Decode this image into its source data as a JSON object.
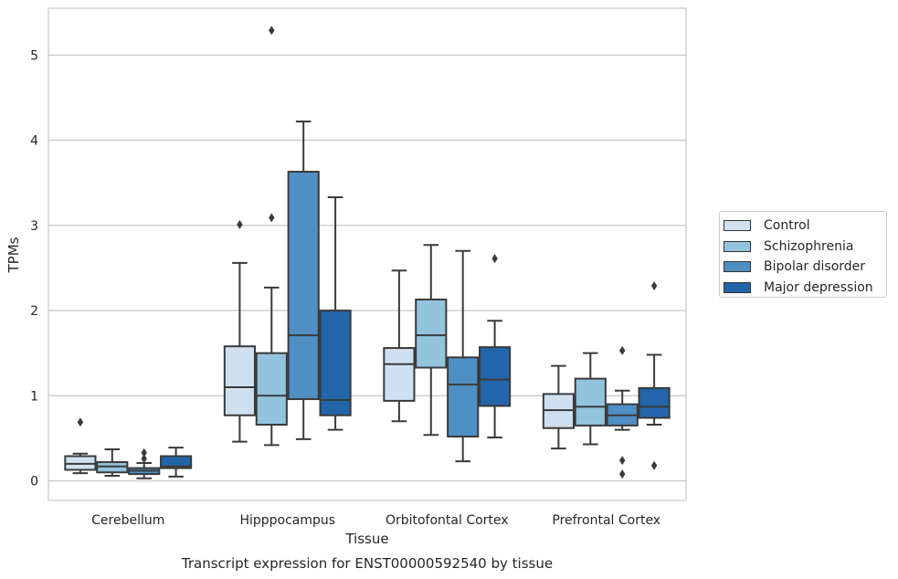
{
  "chart_data": {
    "type": "box",
    "title": "Transcript expression for ENST00000592540 by tissue",
    "xlabel": "Tissue",
    "ylabel": "TPMs",
    "ylim": [
      -0.23,
      5.55
    ],
    "yticks": [
      0,
      1,
      2,
      3,
      4,
      5
    ],
    "grid": "horizontal",
    "legend_position": "right",
    "categories": [
      "Cerebellum",
      "Hipppocampus",
      "Orbitofontal Cortex",
      "Prefrontal Cortex"
    ],
    "series": [
      {
        "name": "Control",
        "color": "#cfe0f1",
        "boxes": [
          {
            "whisker_low": 0.09,
            "q1": 0.13,
            "median": 0.2,
            "q3": 0.29,
            "whisker_high": 0.32,
            "outliers": [
              0.69
            ]
          },
          {
            "whisker_low": 0.46,
            "q1": 0.77,
            "median": 1.1,
            "q3": 1.58,
            "whisker_high": 2.56,
            "outliers": [
              3.01
            ]
          },
          {
            "whisker_low": 0.7,
            "q1": 0.94,
            "median": 1.37,
            "q3": 1.56,
            "whisker_high": 2.47,
            "outliers": []
          },
          {
            "whisker_low": 0.38,
            "q1": 0.62,
            "median": 0.83,
            "q3": 1.02,
            "whisker_high": 1.35,
            "outliers": []
          }
        ]
      },
      {
        "name": "Schizophrenia",
        "color": "#93c4de",
        "boxes": [
          {
            "whisker_low": 0.06,
            "q1": 0.1,
            "median": 0.17,
            "q3": 0.22,
            "whisker_high": 0.37,
            "outliers": []
          },
          {
            "whisker_low": 0.42,
            "q1": 0.66,
            "median": 1.0,
            "q3": 1.5,
            "whisker_high": 2.27,
            "outliers": [
              3.09,
              5.29
            ]
          },
          {
            "whisker_low": 0.54,
            "q1": 1.33,
            "median": 1.71,
            "q3": 2.13,
            "whisker_high": 2.77,
            "outliers": []
          },
          {
            "whisker_low": 0.43,
            "q1": 0.65,
            "median": 0.87,
            "q3": 1.2,
            "whisker_high": 1.5,
            "outliers": []
          }
        ]
      },
      {
        "name": "Bipolar disorder",
        "color": "#4f8fc4",
        "boxes": [
          {
            "whisker_low": 0.03,
            "q1": 0.08,
            "median": 0.12,
            "q3": 0.15,
            "whisker_high": 0.21,
            "outliers": [
              0.26,
              0.33
            ]
          },
          {
            "whisker_low": 0.49,
            "q1": 0.96,
            "median": 1.71,
            "q3": 3.63,
            "whisker_high": 4.22,
            "outliers": []
          },
          {
            "whisker_low": 0.23,
            "q1": 0.52,
            "median": 1.13,
            "q3": 1.45,
            "whisker_high": 2.7,
            "outliers": []
          },
          {
            "whisker_low": 0.6,
            "q1": 0.65,
            "median": 0.77,
            "q3": 0.9,
            "whisker_high": 1.06,
            "outliers": [
              1.53,
              0.24,
              0.08
            ]
          }
        ]
      },
      {
        "name": "Major depression",
        "color": "#2266a9",
        "boxes": [
          {
            "whisker_low": 0.05,
            "q1": 0.15,
            "median": 0.17,
            "q3": 0.29,
            "whisker_high": 0.39,
            "outliers": []
          },
          {
            "whisker_low": 0.6,
            "q1": 0.77,
            "median": 0.95,
            "q3": 2.0,
            "whisker_high": 3.33,
            "outliers": []
          },
          {
            "whisker_low": 0.51,
            "q1": 0.88,
            "median": 1.19,
            "q3": 1.57,
            "whisker_high": 1.88,
            "outliers": [
              2.61
            ]
          },
          {
            "whisker_low": 0.66,
            "q1": 0.74,
            "median": 0.87,
            "q3": 1.09,
            "whisker_high": 1.48,
            "outliers": [
              2.29,
              0.18
            ]
          }
        ]
      }
    ]
  }
}
